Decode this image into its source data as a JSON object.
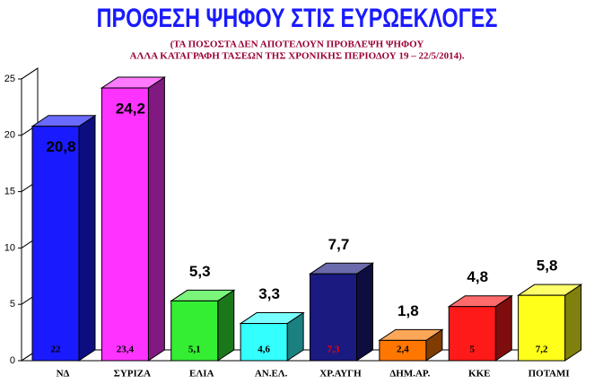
{
  "chart_data": {
    "type": "bar3d",
    "title": "ΠΡΟΘΕΣΗ ΨΗΦΟΥ ΣΤΙΣ ΕΥΡΩΕΚΛΟΓΕΣ",
    "subtitle": [
      "(ΤΑ ΠΟΣΟΣΤΑ ΔΕΝ ΑΠΟΤΕΛΟΥΝ ΠΡΟΒΛΕΨΗ ΨΗΦΟΥ",
      "ΑΛΛΑ ΚΑΤΑΓΡΑΦΗ ΤΑΣΕΩΝ ΤΗΣ ΧΡΟΝΙΚΗΣ ΠΕΡΙΟΔΟΥ 19 – 22/5/2014)."
    ],
    "categories": [
      "ΝΔ",
      "ΣΥΡΙΖΑ",
      "ΕΛΙΑ",
      "ΑΝ.ΕΛ.",
      "ΧΡ.ΑΥΓΗ",
      "ΔΗΜ.ΑΡ.",
      "ΚΚΕ",
      "ΠΟΤΑΜΙ"
    ],
    "values": [
      20.8,
      24.2,
      5.3,
      3.3,
      7.7,
      1.8,
      4.8,
      5.8
    ],
    "value_labels": [
      "20,8",
      "24,2",
      "5,3",
      "3,3",
      "7,7",
      "1,8",
      "4,8",
      "5,8"
    ],
    "inner_values": [
      22,
      23.4,
      5.1,
      4.6,
      7.3,
      2.4,
      5,
      7.2
    ],
    "inner_value_labels": [
      "22",
      "23,4",
      "5,1",
      "4,6",
      "7,3",
      "2,4",
      "5",
      "7,2"
    ],
    "inner_label_colors": [
      "#000000",
      "#000000",
      "#000000",
      "#000000",
      "#ff0000",
      "#000000",
      "#000000",
      "#000000"
    ],
    "colors": [
      "#1a1aff",
      "#ff33ff",
      "#33ee33",
      "#33ffff",
      "#1a1a80",
      "#ff7700",
      "#ff1a1a",
      "#ffff1a"
    ],
    "ylim": [
      0,
      25
    ],
    "yticks": [
      0,
      5,
      10,
      15,
      20,
      25
    ]
  }
}
